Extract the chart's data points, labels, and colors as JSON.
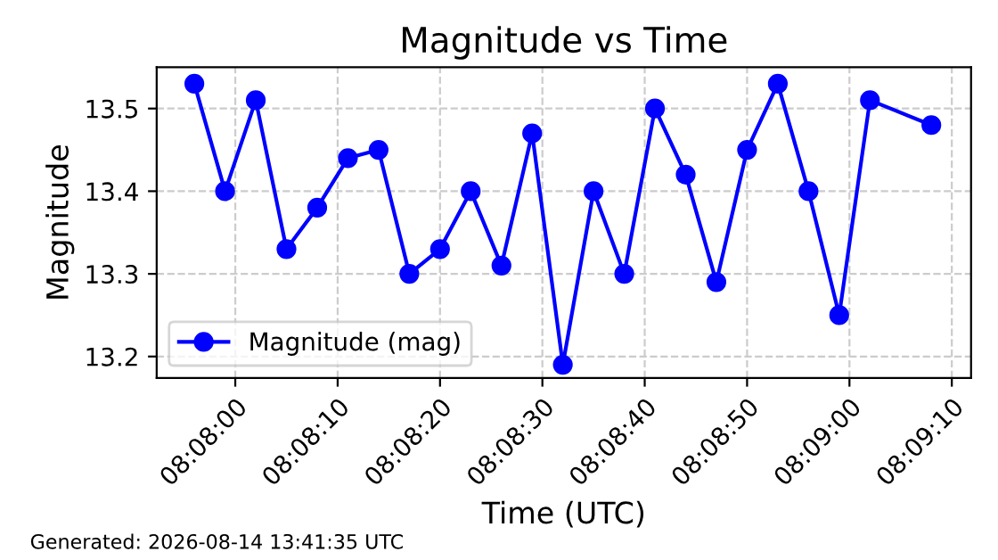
{
  "chart_data": {
    "type": "line",
    "title": "Magnitude vs Time",
    "xlabel": "Time (UTC)",
    "ylabel": "Magnitude",
    "x": [
      8.132222,
      8.133056,
      8.133889,
      8.134722,
      8.135556,
      8.136389,
      8.137222,
      8.138056,
      8.138889,
      8.139722,
      8.140556,
      8.141389,
      8.142222,
      8.143056,
      8.143889,
      8.144722,
      8.145556,
      8.146389,
      8.147222,
      8.148056,
      8.148889,
      8.149722,
      8.150556,
      8.152222
    ],
    "series": [
      {
        "name": "Magnitude (mag)",
        "color": "#0000ff",
        "values": [
          13.53,
          13.4,
          13.51,
          13.33,
          13.38,
          13.44,
          13.45,
          13.3,
          13.33,
          13.4,
          13.31,
          13.47,
          13.19,
          13.4,
          13.3,
          13.5,
          13.42,
          13.29,
          13.45,
          13.53,
          13.4,
          13.25,
          13.51,
          13.48
        ]
      }
    ],
    "xlim": [
      8.1312,
      8.1533
    ],
    "ylim": [
      13.174,
      13.55
    ],
    "xticks": [
      {
        "value": 8.133333,
        "label": "08:08:00"
      },
      {
        "value": 8.136111,
        "label": "08:08:10"
      },
      {
        "value": 8.138889,
        "label": "08:08:20"
      },
      {
        "value": 8.141667,
        "label": "08:08:30"
      },
      {
        "value": 8.144444,
        "label": "08:08:40"
      },
      {
        "value": 8.147222,
        "label": "08:08:50"
      },
      {
        "value": 8.15,
        "label": "08:09:00"
      },
      {
        "value": 8.152778,
        "label": "08:09:10"
      }
    ],
    "yticks": [
      {
        "value": 13.2,
        "label": "13.2"
      },
      {
        "value": 13.3,
        "label": "13.3"
      },
      {
        "value": 13.4,
        "label": "13.4"
      },
      {
        "value": 13.5,
        "label": "13.5"
      }
    ],
    "grid": true,
    "legend": "bottom left",
    "marker": "circle",
    "line_style": "solid",
    "annotations": [
      "Generated: 2026-08-14 13:41:35 UTC"
    ]
  }
}
